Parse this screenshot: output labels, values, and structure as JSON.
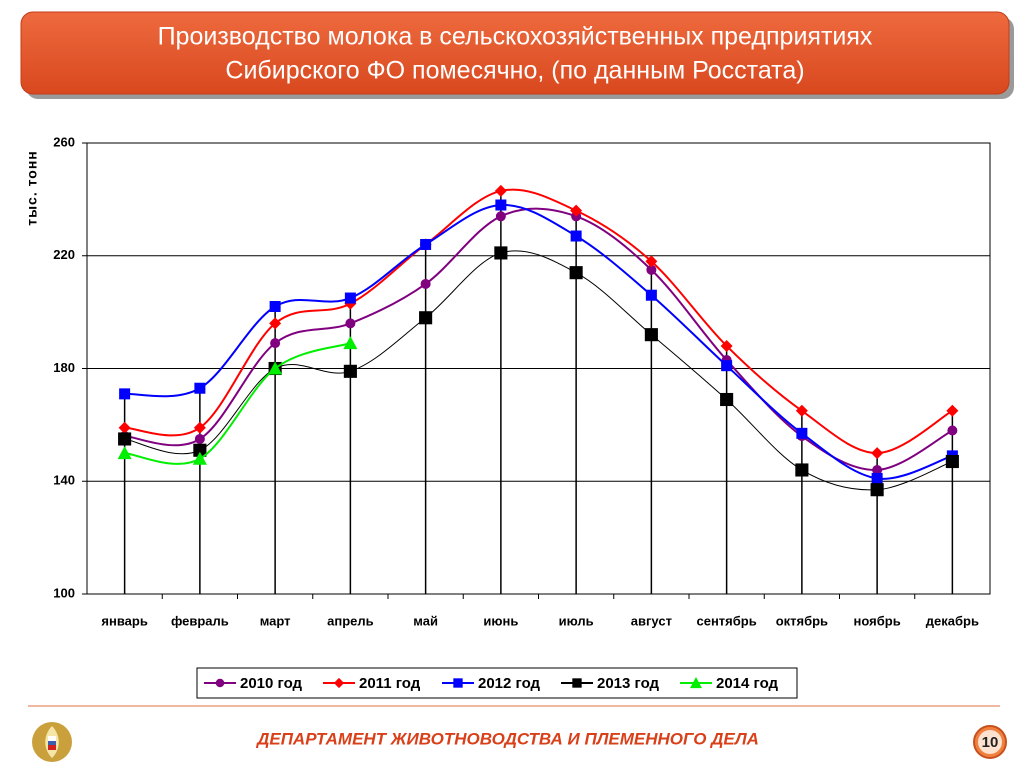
{
  "chart_data": {
    "type": "line",
    "title": [
      "Производство молока в сельскохозяйственных предприятиях",
      "Сибирского ФО помесячно, (по данным Росстата)"
    ],
    "y_label": "тыс. тонн",
    "categories": [
      "январь",
      "февраль",
      "март",
      "апрель",
      "май",
      "июнь",
      "июль",
      "август",
      "сентябрь",
      "октябрь",
      "ноябрь",
      "декабрь"
    ],
    "ylim": [
      100,
      260
    ],
    "yticks": [
      100,
      140,
      180,
      220,
      260
    ],
    "grid": true,
    "legend": "bottom",
    "drop_lines": true,
    "series": [
      {
        "name": "2010 год",
        "color": "#800080",
        "marker": "circle",
        "values": [
          156,
          155,
          189,
          196,
          210,
          234,
          234,
          215,
          183,
          156,
          144,
          158
        ]
      },
      {
        "name": "2011 год",
        "color": "#ff0000",
        "marker": "diamond",
        "values": [
          159,
          159,
          196,
          203,
          224,
          243,
          236,
          218,
          188,
          165,
          150,
          165
        ]
      },
      {
        "name": "2012 год",
        "color": "#0000ff",
        "marker": "square",
        "values": [
          171,
          173,
          202,
          205,
          224,
          238,
          227,
          206,
          181,
          157,
          141,
          149
        ]
      },
      {
        "name": "2013 год",
        "color": "#000000",
        "marker": "square",
        "values": [
          155,
          151,
          180,
          179,
          198,
          221,
          214,
          192,
          169,
          144,
          137,
          147
        ]
      },
      {
        "name": "2014 год",
        "color": "#00ee00",
        "marker": "triangle",
        "values": [
          150,
          148,
          180,
          189,
          null,
          null,
          null,
          null,
          null,
          null,
          null,
          null
        ]
      }
    ]
  },
  "footer": {
    "department": "ДЕПАРТАМЕНТ ЖИВОТНОВОДСТВА И ПЛЕМЕННОГО ДЕЛА",
    "page": 10
  }
}
